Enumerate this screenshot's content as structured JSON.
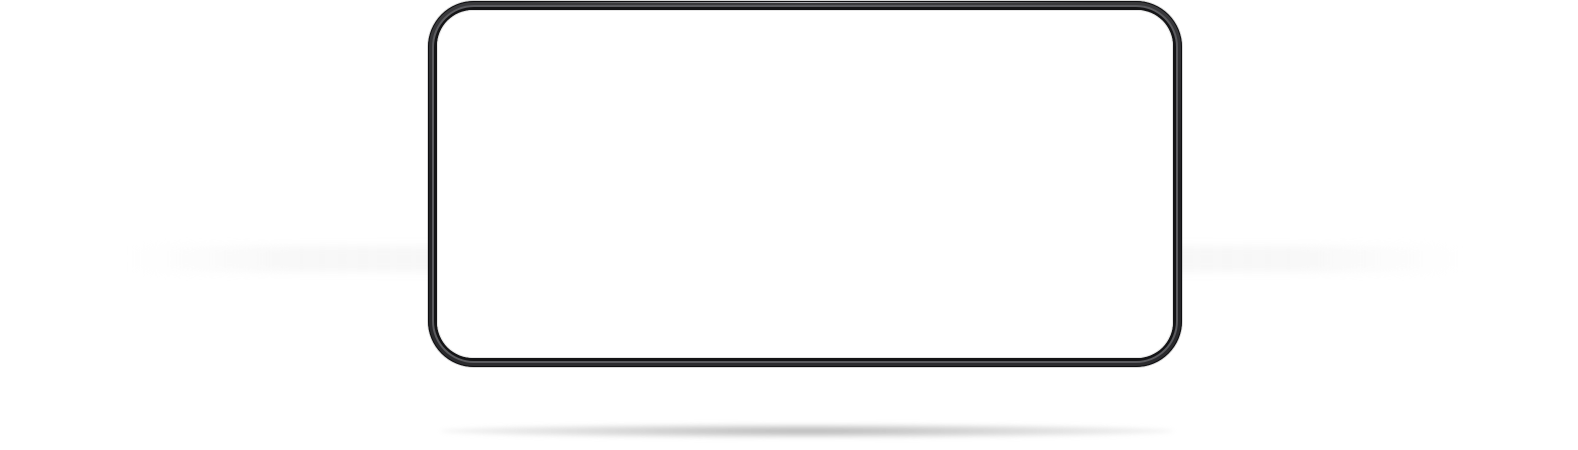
{
  "scene": {
    "description_label": "",
    "device": {
      "orientation": "landscape",
      "screen_content": "",
      "frame_color": "#1f1f22",
      "screen_color": "#ffffff"
    },
    "background_color": "#ffffff",
    "shadow_color": "#9a9a9a"
  }
}
